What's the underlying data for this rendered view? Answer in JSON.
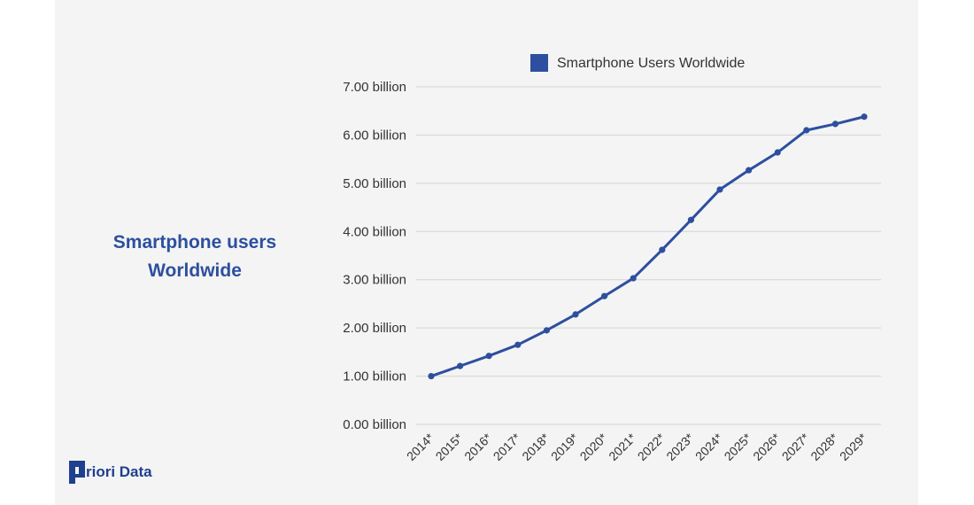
{
  "side_title": {
    "line1": "Smartphone users",
    "line2": "Worldwide"
  },
  "logo": {
    "text": "riori Data",
    "mark_icon": "p-letter-logo-icon"
  },
  "colors": {
    "series": "#2e4f9f",
    "title": "#2c4f9e",
    "grid": "#d4d4d4",
    "text": "#333333",
    "card": "#f4f4f4"
  },
  "chart_data": {
    "type": "line",
    "title": "",
    "xlabel": "",
    "ylabel": "",
    "legend": "top",
    "grid": true,
    "ylim": [
      0,
      7
    ],
    "yticks": [
      "0.00 billion",
      "1.00 billion",
      "2.00 billion",
      "3.00 billion",
      "4.00 billion",
      "5.00 billion",
      "6.00 billion",
      "7.00 billion"
    ],
    "categories": [
      "2014*",
      "2015*",
      "2016*",
      "2017*",
      "2018*",
      "2019*",
      "2020*",
      "2021*",
      "2022*",
      "2023*",
      "2024*",
      "2025*",
      "2026*",
      "2027*",
      "2028*",
      "2029*"
    ],
    "series": [
      {
        "name": "Smartphone Users Worldwide",
        "values": [
          1.0,
          1.21,
          1.42,
          1.65,
          1.95,
          2.28,
          2.66,
          3.03,
          3.62,
          4.24,
          4.87,
          5.27,
          5.64,
          6.1,
          6.23,
          6.38
        ]
      }
    ]
  }
}
